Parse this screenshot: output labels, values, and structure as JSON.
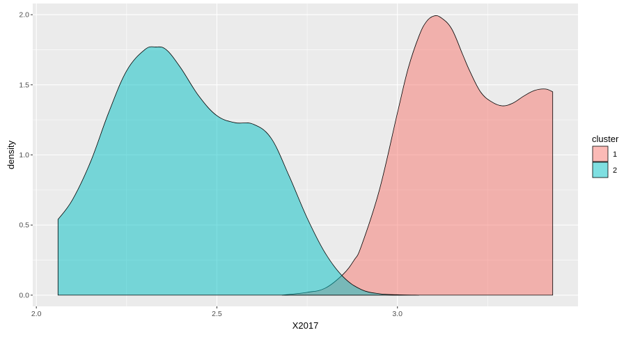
{
  "chart_data": {
    "type": "area",
    "subtype": "density",
    "title": "",
    "xlabel": "X2017",
    "ylabel": "density",
    "xlim": [
      1.99,
      3.5
    ],
    "ylim": [
      -0.08,
      2.08
    ],
    "x_ticks": [
      {
        "value": 2.0,
        "label": "2.0"
      },
      {
        "value": 2.5,
        "label": "2.5"
      },
      {
        "value": 3.0,
        "label": "3.0"
      }
    ],
    "y_ticks": [
      {
        "value": 0.0,
        "label": "0.0"
      },
      {
        "value": 0.5,
        "label": "0.5"
      },
      {
        "value": 1.0,
        "label": "1.0"
      },
      {
        "value": 1.5,
        "label": "1.5"
      },
      {
        "value": 2.0,
        "label": "2.0"
      }
    ],
    "grid": true,
    "background_color": "#ebebeb",
    "grid_color": "#ffffff",
    "legend": {
      "title": "cluster",
      "position": "right",
      "entries": [
        {
          "label": "1",
          "color": "#f8766d"
        },
        {
          "label": "2",
          "color": "#00bfc4"
        }
      ]
    },
    "fill_alpha": 0.5,
    "series": [
      {
        "name": "1",
        "color": "#f8766d",
        "x": [
          2.68,
          2.75,
          2.8,
          2.85,
          2.88,
          2.9,
          2.95,
          3.0,
          3.03,
          3.06,
          3.08,
          3.1,
          3.12,
          3.15,
          3.18,
          3.2,
          3.23,
          3.26,
          3.29,
          3.32,
          3.35,
          3.38,
          3.41,
          3.43
        ],
        "y": [
          0.0,
          0.02,
          0.05,
          0.15,
          0.25,
          0.35,
          0.75,
          1.3,
          1.62,
          1.85,
          1.95,
          1.99,
          1.98,
          1.9,
          1.72,
          1.6,
          1.45,
          1.38,
          1.35,
          1.37,
          1.42,
          1.46,
          1.47,
          1.45
        ]
      },
      {
        "name": "2",
        "color": "#00bfc4",
        "x": [
          2.06,
          2.1,
          2.15,
          2.2,
          2.25,
          2.3,
          2.33,
          2.36,
          2.4,
          2.45,
          2.5,
          2.55,
          2.6,
          2.65,
          2.7,
          2.75,
          2.8,
          2.85,
          2.9,
          2.95,
          3.0,
          3.06
        ],
        "y": [
          0.54,
          0.68,
          0.95,
          1.3,
          1.6,
          1.75,
          1.77,
          1.75,
          1.62,
          1.42,
          1.28,
          1.23,
          1.22,
          1.12,
          0.85,
          0.55,
          0.3,
          0.13,
          0.04,
          0.01,
          0.003,
          0.0
        ]
      }
    ]
  }
}
